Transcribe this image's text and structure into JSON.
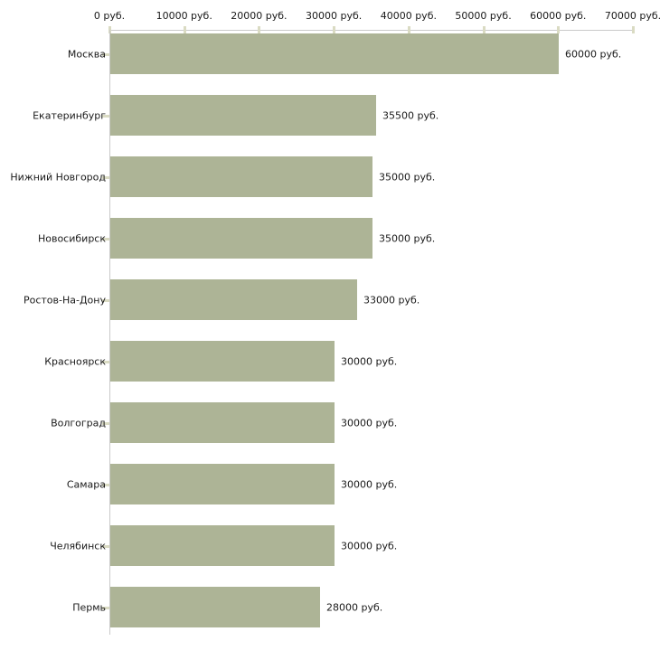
{
  "chart_data": {
    "type": "bar",
    "orientation": "horizontal",
    "title": "",
    "xlabel": "",
    "ylabel": "",
    "categories": [
      "Москва",
      "Екатеринбург",
      "Нижний Новгород",
      "Новосибирск",
      "Ростов-На-Дону",
      "Красноярск",
      "Волгоград",
      "Самара",
      "Челябинск",
      "Пермь"
    ],
    "values": [
      60000,
      35500,
      35000,
      35000,
      33000,
      30000,
      30000,
      30000,
      30000,
      28000
    ],
    "value_labels": [
      "60000 руб.",
      "35500 руб.",
      "35000 руб.",
      "35000 руб.",
      "33000 руб.",
      "30000 руб.",
      "30000 руб.",
      "30000 руб.",
      "30000 руб.",
      "28000 руб."
    ],
    "x_axis": {
      "position": "top",
      "range": [
        0,
        70000
      ],
      "ticks": [
        0,
        10000,
        20000,
        30000,
        40000,
        50000,
        60000,
        70000
      ],
      "tick_labels": [
        "0 руб.",
        "10000 руб.",
        "20000 руб.",
        "30000 руб.",
        "40000 руб.",
        "50000 руб.",
        "60000 руб.",
        "70000 руб."
      ],
      "unit": "руб."
    },
    "grid": false,
    "legend": false,
    "colors": {
      "bar": "#adb496",
      "axis_line": "#c9c9c9",
      "tick_mark": "#dadbc3",
      "text": "#1a1a1a",
      "background": "#ffffff"
    }
  }
}
